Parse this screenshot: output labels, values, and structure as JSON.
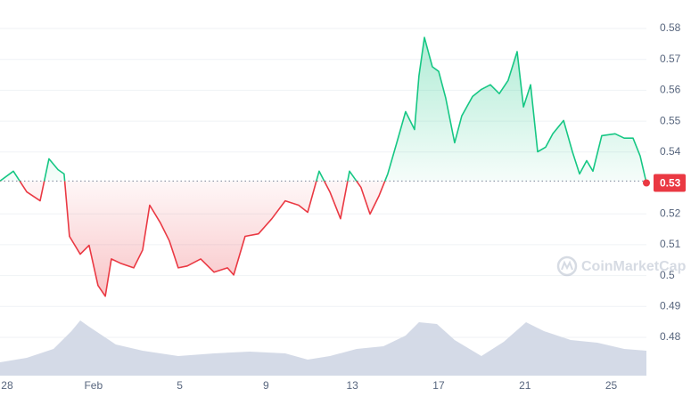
{
  "chart_data": {
    "type": "line",
    "x": [
      -0.33,
      0.29,
      0.91,
      1.53,
      1.94,
      2.36,
      2.64,
      2.89,
      3.39,
      3.8,
      4.21,
      4.55,
      4.83,
      5.25,
      5.87,
      6.28,
      6.61,
      7.11,
      7.52,
      7.93,
      8.35,
      8.97,
      9.59,
      10.21,
      10.5,
      11.03,
      11.65,
      12.27,
      12.89,
      13.51,
      13.93,
      14.46,
      14.96,
      15.45,
      15.87,
      16.4,
      16.82,
      17.23,
      17.64,
      18.06,
      18.47,
      18.88,
      19.09,
      19.34,
      19.71,
      20.0,
      20.33,
      20.74,
      21.07,
      21.57,
      21.98,
      22.4,
      22.81,
      23.22,
      23.64,
      23.93,
      24.26,
      24.59,
      24.96,
      25.29,
      25.79,
      26.2,
      26.53,
      26.86,
      27.15,
      27.56,
      28.18,
      28.6,
      29.01,
      29.34,
      29.63
    ],
    "values": [
      0.5306,
      0.5338,
      0.5271,
      0.5242,
      0.5378,
      0.5343,
      0.5329,
      0.5127,
      0.5069,
      0.5098,
      0.4968,
      0.4933,
      0.5054,
      0.504,
      0.5025,
      0.5083,
      0.5228,
      0.517,
      0.5112,
      0.5025,
      0.5031,
      0.5054,
      0.5011,
      0.5025,
      0.5002,
      0.5127,
      0.5135,
      0.5184,
      0.5242,
      0.5228,
      0.5205,
      0.5338,
      0.5271,
      0.5184,
      0.5338,
      0.5286,
      0.5199,
      0.5257,
      0.5329,
      0.543,
      0.5531,
      0.5473,
      0.5647,
      0.5771,
      0.5676,
      0.5661,
      0.5575,
      0.543,
      0.5517,
      0.558,
      0.5603,
      0.5618,
      0.5589,
      0.5632,
      0.5725,
      0.5546,
      0.5618,
      0.5401,
      0.5416,
      0.5459,
      0.5502,
      0.5401,
      0.5329,
      0.5372,
      0.5338,
      0.5453,
      0.5459,
      0.5445,
      0.5445,
      0.5387,
      0.53
    ],
    "reference_line": 0.5306,
    "up_color": "#16c784",
    "down_color": "#ea3943",
    "price_label": "0.53",
    "xlim": [
      -0.33,
      29.63
    ],
    "xticks": [
      {
        "value": 0,
        "label": "28"
      },
      {
        "value": 4,
        "label": "Feb"
      },
      {
        "value": 8,
        "label": "5"
      },
      {
        "value": 12,
        "label": "9"
      },
      {
        "value": 16,
        "label": "13"
      },
      {
        "value": 20,
        "label": "17"
      },
      {
        "value": 24,
        "label": "21"
      },
      {
        "value": 28,
        "label": "25"
      }
    ],
    "ylim": [
      0.4725,
      0.5875
    ],
    "yticks": [
      0.48,
      0.49,
      0.5,
      0.51,
      0.52,
      0.54,
      0.55,
      0.56,
      0.57,
      0.58
    ],
    "grid": true,
    "volume": {
      "color": "#cfd6e4",
      "x": [
        -0.33,
        0.91,
        2.15,
        2.98,
        3.39,
        3.8,
        4.42,
        5.04,
        6.28,
        7.93,
        9.59,
        11.24,
        12.89,
        13.93,
        14.96,
        16.2,
        17.44,
        18.47,
        19.09,
        19.92,
        20.74,
        21.98,
        23.02,
        24.05,
        24.88,
        26.12,
        27.36,
        28.6,
        29.63
      ],
      "values": [
        15,
        20,
        30,
        50,
        62,
        55,
        45,
        35,
        28,
        22,
        25,
        27,
        25,
        18,
        22,
        30,
        33,
        45,
        60,
        58,
        40,
        22,
        38,
        60,
        50,
        40,
        37,
        30,
        28
      ],
      "ylim": [
        0,
        70
      ]
    },
    "watermark": "CoinMarketCap"
  }
}
